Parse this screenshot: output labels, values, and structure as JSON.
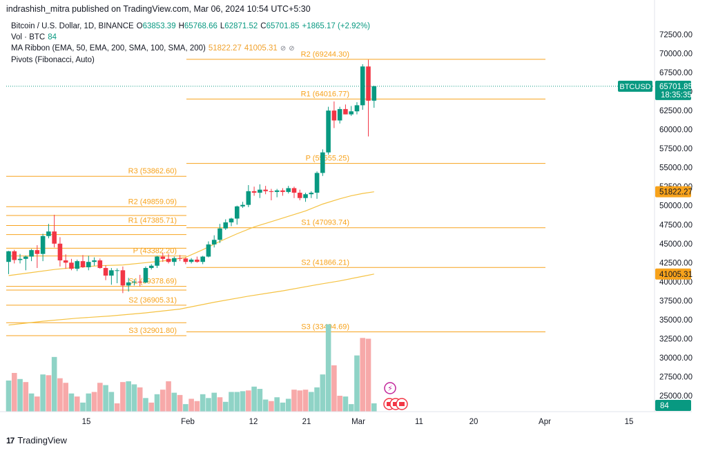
{
  "credit": "indrashish_mitra published on TradingView.com, Mar 06, 2024 10:54 UTC+5:30",
  "legend": {
    "symbol": "Bitcoin / U.S. Dollar, 1D, BINANCE",
    "o_label": "O",
    "o_value": "63853.39",
    "h_label": "H",
    "h_value": "65768.66",
    "l_label": "L",
    "l_value": "62871.52",
    "c_label": "C",
    "c_value": "65701.85",
    "change": "+1865.17 (+2.92%)",
    "vol_label": "Vol · BTC",
    "vol_value": "84",
    "ma_label": "MA Ribbon (EMA, 50, EMA, 200, SMA, 100, SMA, 200)",
    "ma_value1": "51822.27",
    "ma_value2": "41005.31",
    "pivots_label": "Pivots (Fibonacci, Auto)"
  },
  "brand": "TradingView",
  "price_tag": {
    "symbol": "BTCUSD",
    "price": "65701.85",
    "countdown": "18:35:35"
  },
  "ma_tags": [
    "51822.27",
    "41005.31"
  ],
  "volume_tag": "84",
  "colors": {
    "up": "#089981",
    "down": "#f23645",
    "pivot": "#f7a21b",
    "ma": "#f5c242",
    "tag": "#f7a21b"
  },
  "chart_data": {
    "type": "candlestick",
    "y_axis_ticks": [
      "72500.00",
      "70000.00",
      "67500.00",
      "65000.00",
      "62500.00",
      "60000.00",
      "57500.00",
      "55000.00",
      "52500.00",
      "50000.00",
      "47500.00",
      "45000.00",
      "42500.00",
      "40000.00",
      "37500.00",
      "35000.00",
      "32500.00",
      "30000.00",
      "27500.00",
      "25000.00"
    ],
    "x_axis_ticks": [
      "15",
      "Feb",
      "12",
      "21",
      "Mar",
      "11",
      "20",
      "Apr",
      "15"
    ],
    "ylim": [
      23700,
      74000
    ],
    "candles": [
      [
        42600,
        44050,
        41000,
        44000
      ],
      [
        44000,
        44200,
        42400,
        42850
      ],
      [
        42850,
        43650,
        42400,
        43000
      ],
      [
        43000,
        43450,
        41500,
        43300
      ],
      [
        43300,
        44300,
        42700,
        44150
      ],
      [
        44150,
        44800,
        41800,
        43650
      ],
      [
        43650,
        46300,
        42700,
        46000
      ],
      [
        46000,
        47600,
        45700,
        46600
      ],
      [
        46600,
        48800,
        44500,
        45000
      ],
      [
        45000,
        45850,
        42000,
        42800
      ],
      [
        42800,
        43600,
        41700,
        42500
      ],
      [
        42500,
        43000,
        41500,
        41700
      ],
      [
        41700,
        42900,
        41400,
        42700
      ],
      [
        42700,
        43500,
        41800,
        41900
      ],
      [
        41900,
        43400,
        41500,
        42600
      ],
      [
        42600,
        43200,
        42100,
        42800
      ],
      [
        42800,
        43050,
        41700,
        41800
      ],
      [
        41800,
        42150,
        40200,
        40800
      ],
      [
        40800,
        41800,
        39600,
        41500
      ],
      [
        41500,
        41750,
        39800,
        41500
      ],
      [
        41500,
        42000,
        38500,
        39500
      ],
      [
        39500,
        40500,
        38700,
        39900
      ],
      [
        39900,
        40300,
        39500,
        40000
      ],
      [
        40000,
        40900,
        39400,
        39900
      ],
      [
        39900,
        42000,
        39800,
        41800
      ],
      [
        41800,
        42300,
        41600,
        42100
      ],
      [
        42100,
        43400,
        41800,
        43300
      ],
      [
        43300,
        43800,
        42600,
        43000
      ],
      [
        43000,
        43650,
        42400,
        42600
      ],
      [
        42600,
        43300,
        42100,
        43100
      ],
      [
        43100,
        43500,
        42700,
        43050
      ],
      [
        43050,
        43200,
        42300,
        42600
      ],
      [
        42600,
        43100,
        42400,
        42900
      ],
      [
        42900,
        43300,
        42500,
        42600
      ],
      [
        42600,
        43400,
        42300,
        43300
      ],
      [
        43300,
        45300,
        43200,
        44900
      ],
      [
        44900,
        46100,
        44500,
        45500
      ],
      [
        45500,
        47600,
        45100,
        47000
      ],
      [
        47000,
        48200,
        46800,
        47800
      ],
      [
        47800,
        48400,
        47300,
        48300
      ],
      [
        48300,
        50000,
        47500,
        49900
      ],
      [
        49900,
        50500,
        49700,
        50100
      ],
      [
        50100,
        52700,
        49800,
        51900
      ],
      [
        51900,
        52500,
        51300,
        51700
      ],
      [
        51700,
        52800,
        51000,
        52100
      ],
      [
        52100,
        52600,
        51500,
        51900
      ],
      [
        51900,
        52200,
        50700,
        51800
      ],
      [
        51800,
        52200,
        51100,
        52000
      ],
      [
        52000,
        52300,
        51300,
        51800
      ],
      [
        51800,
        52600,
        51600,
        52300
      ],
      [
        52300,
        52500,
        51000,
        51700
      ],
      [
        51700,
        52100,
        50700,
        51000
      ],
      [
        51000,
        51700,
        50500,
        51500
      ],
      [
        51500,
        51900,
        51000,
        51700
      ],
      [
        51700,
        54500,
        50900,
        54300
      ],
      [
        54300,
        57400,
        53900,
        57000
      ],
      [
        57000,
        63000,
        56700,
        62500
      ],
      [
        62500,
        63700,
        60200,
        61200
      ],
      [
        61200,
        63000,
        60800,
        62700
      ],
      [
        62700,
        63300,
        62000,
        62000
      ],
      [
        62000,
        63100,
        61800,
        62400
      ],
      [
        62400,
        63600,
        62000,
        63200
      ],
      [
        63200,
        68600,
        62600,
        68300
      ],
      [
        68300,
        69200,
        59100,
        63800
      ],
      [
        63800,
        65770,
        62870,
        65700
      ]
    ],
    "volume": [
      [
        27000,
        "u"
      ],
      [
        28000,
        "d"
      ],
      [
        27200,
        "u"
      ],
      [
        26800,
        "d"
      ],
      [
        25300,
        "u"
      ],
      [
        24900,
        "d"
      ],
      [
        27800,
        "u"
      ],
      [
        27700,
        "d"
      ],
      [
        30100,
        "u"
      ],
      [
        27300,
        "d"
      ],
      [
        26700,
        "d"
      ],
      [
        25300,
        "u"
      ],
      [
        24900,
        "d"
      ],
      [
        24100,
        "u"
      ],
      [
        25300,
        "u"
      ],
      [
        25500,
        "d"
      ],
      [
        26700,
        "d"
      ],
      [
        26400,
        "u"
      ],
      [
        25500,
        "u"
      ],
      [
        24000,
        "d"
      ],
      [
        26800,
        "d"
      ],
      [
        26900,
        "u"
      ],
      [
        26500,
        "u"
      ],
      [
        26100,
        "d"
      ],
      [
        24700,
        "u"
      ],
      [
        24100,
        "d"
      ],
      [
        25200,
        "u"
      ],
      [
        25800,
        "d"
      ],
      [
        26900,
        "d"
      ],
      [
        25400,
        "u"
      ],
      [
        25100,
        "d"
      ],
      [
        23900,
        "u"
      ],
      [
        24600,
        "d"
      ],
      [
        24300,
        "d"
      ],
      [
        25200,
        "u"
      ],
      [
        24700,
        "u"
      ],
      [
        25400,
        "u"
      ],
      [
        24800,
        "d"
      ],
      [
        24200,
        "u"
      ],
      [
        25500,
        "u"
      ],
      [
        25500,
        "u"
      ],
      [
        25600,
        "u"
      ],
      [
        25700,
        "d"
      ],
      [
        26200,
        "u"
      ],
      [
        25900,
        "u"
      ],
      [
        24500,
        "u"
      ],
      [
        24300,
        "d"
      ],
      [
        24800,
        "u"
      ],
      [
        24100,
        "u"
      ],
      [
        24600,
        "u"
      ],
      [
        25800,
        "d"
      ],
      [
        25700,
        "d"
      ],
      [
        25800,
        "d"
      ],
      [
        25500,
        "u"
      ],
      [
        26100,
        "u"
      ],
      [
        27800,
        "u"
      ],
      [
        34400,
        "u"
      ],
      [
        29000,
        "d"
      ],
      [
        25000,
        "d"
      ],
      [
        24900,
        "u"
      ],
      [
        23900,
        "u"
      ],
      [
        30300,
        "u"
      ],
      [
        32600,
        "d"
      ],
      [
        32500,
        "d"
      ],
      [
        24000,
        "u"
      ]
    ],
    "pivot_sets": [
      {
        "x_range": [
          0,
          26.5
        ],
        "levels": [
          {
            "name": "R3",
            "value": 53862.6,
            "label": "R3 (53862.60)"
          },
          {
            "name": "R2",
            "value": 49859.09,
            "label": "R2 (49859.09)"
          },
          {
            "name": "R1",
            "value": 47385.71,
            "label": "R1 (47385.71)"
          },
          {
            "name": "P",
            "value": 43382.2,
            "label": "P (43382.20)"
          },
          {
            "name": "S1",
            "value": 39378.69,
            "label": "S1 (39378.69)"
          },
          {
            "name": "S2",
            "value": 36905.31,
            "label": "S2 (36905.31)"
          },
          {
            "name": "S3",
            "value": 32901.8,
            "label": "S3 (32901.80)"
          }
        ]
      },
      {
        "x_range": [
          26.5,
          78
        ],
        "levels": [
          {
            "name": "R2",
            "value": 69244.3,
            "label": "R2 (69244.30)"
          },
          {
            "name": "R1",
            "value": 64016.77,
            "label": "R1 (64016.77)"
          },
          {
            "name": "P",
            "value": 55555.25,
            "label": "P (55555.25)"
          },
          {
            "name": "S1",
            "value": 47093.74,
            "label": "S1 (47093.74)"
          },
          {
            "name": "S2",
            "value": 41866.21,
            "label": "S2 (41866.21)"
          },
          {
            "name": "S3",
            "value": 33404.69,
            "label": "S3 (33404.69)"
          }
        ]
      }
    ],
    "ma_lines": [
      {
        "points": [
          [
            0,
            40800
          ],
          [
            4,
            41200
          ],
          [
            8,
            41600
          ],
          [
            12,
            41900
          ],
          [
            16,
            42100
          ],
          [
            20,
            42200
          ],
          [
            24,
            42500
          ],
          [
            28,
            42800
          ],
          [
            31,
            43200
          ],
          [
            34,
            44200
          ],
          [
            37,
            45300
          ],
          [
            40,
            46300
          ],
          [
            43,
            47200
          ],
          [
            46,
            47900
          ],
          [
            49,
            48600
          ],
          [
            52,
            49300
          ],
          [
            55,
            50200
          ],
          [
            58,
            50900
          ],
          [
            60,
            51300
          ],
          [
            62,
            51600
          ],
          [
            64,
            51822
          ]
        ]
      },
      {
        "points": [
          [
            0,
            34300
          ],
          [
            6,
            34800
          ],
          [
            12,
            35200
          ],
          [
            18,
            35500
          ],
          [
            24,
            35900
          ],
          [
            30,
            36400
          ],
          [
            36,
            37300
          ],
          [
            42,
            38100
          ],
          [
            48,
            38800
          ],
          [
            54,
            39600
          ],
          [
            58,
            40100
          ],
          [
            62,
            40700
          ],
          [
            64,
            41005
          ]
        ]
      }
    ],
    "last_price": 65701.85
  }
}
